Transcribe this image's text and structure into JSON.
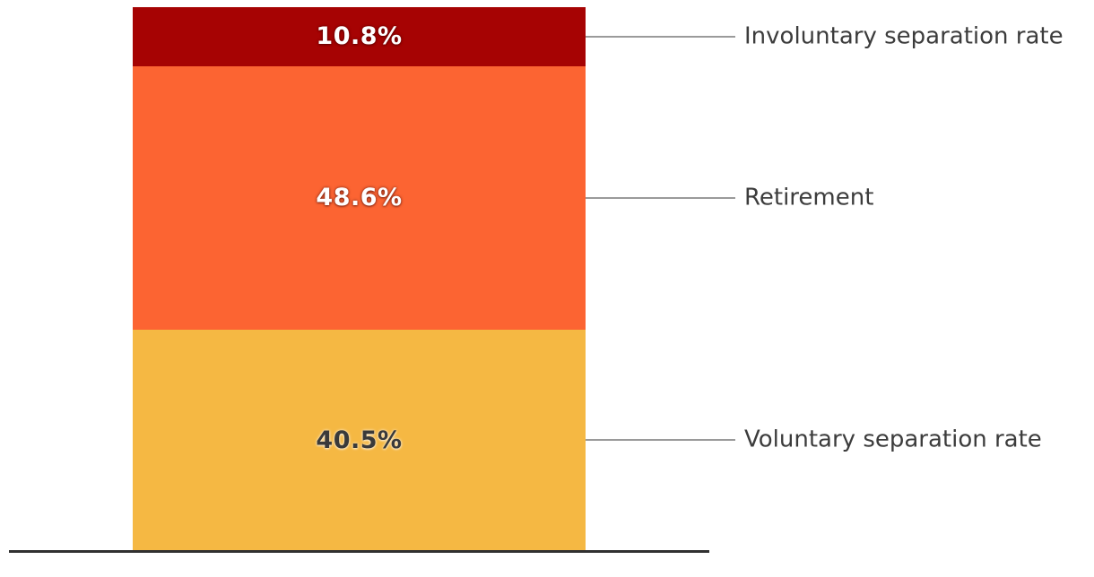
{
  "chart_data": {
    "type": "bar",
    "subtype": "stacked-percentage-column",
    "title": "",
    "orientation": "vertical",
    "legend_position": "right-callouts",
    "categories": [
      "Involuntary separation rate",
      "Retirement",
      "Voluntary separation rate"
    ],
    "values": [
      10.8,
      48.6,
      40.5
    ],
    "segments": [
      {
        "label": "Involuntary separation rate",
        "value": 10.8,
        "value_label": "10.8%",
        "color": "#a60303",
        "text_color": "#ffffff"
      },
      {
        "label": "Retirement",
        "value": 48.6,
        "value_label": "48.6%",
        "color": "#fc6432",
        "text_color": "#ffffff"
      },
      {
        "label": "Voluntary separation rate",
        "value": 40.5,
        "value_label": "40.5%",
        "color": "#f5b843",
        "text_color": "#3a3a3a"
      }
    ],
    "axis": {
      "baseline_color": "#303030",
      "connector_color": "#9a9a9a",
      "label_color": "#3c3c3c",
      "grid": false
    }
  }
}
